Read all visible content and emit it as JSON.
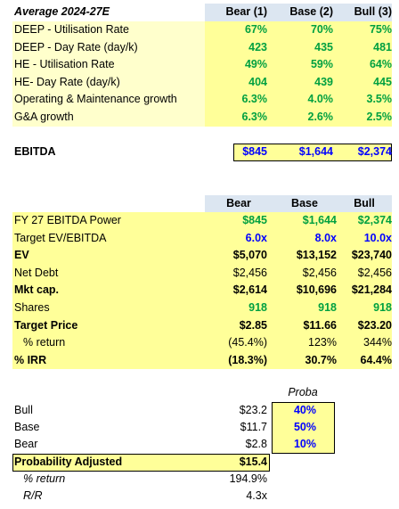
{
  "scenario_table": {
    "title": "Average 2024-27E",
    "columns": [
      "Bear (1)",
      "Base (2)",
      "Bull (3)"
    ],
    "rows": [
      {
        "label": "DEEP - Utilisation Rate",
        "values": [
          "67%",
          "70%",
          "75%"
        ]
      },
      {
        "label": "DEEP - Day Rate (day/k)",
        "values": [
          "423",
          "435",
          "481"
        ]
      },
      {
        "label": "HE - Utilisation Rate",
        "values": [
          "49%",
          "59%",
          "64%"
        ]
      },
      {
        "label": "HE- Day Rate (day/k)",
        "values": [
          "404",
          "439",
          "445"
        ]
      },
      {
        "label": "Operating & Maintenance growth",
        "values": [
          "6.3%",
          "4.0%",
          "3.5%"
        ]
      },
      {
        "label": "G&A growth",
        "values": [
          "6.3%",
          "2.6%",
          "2.5%"
        ]
      }
    ]
  },
  "ebitda": {
    "label": "EBITDA",
    "values": [
      "$845",
      "$1,644",
      "$2,374"
    ]
  },
  "valuation": {
    "columns": [
      "Bear",
      "Base",
      "Bull"
    ],
    "rows": [
      {
        "label": "FY 27 EBITDA Power",
        "values": [
          "$845",
          "$1,644",
          "$2,374"
        ]
      },
      {
        "label": "Target EV/EBITDA",
        "values": [
          "6.0x",
          "8.0x",
          "10.0x"
        ]
      },
      {
        "label": "EV",
        "values": [
          "$5,070",
          "$13,152",
          "$23,740"
        ]
      },
      {
        "label": "Net Debt",
        "values": [
          "$2,456",
          "$2,456",
          "$2,456"
        ]
      },
      {
        "label": "Mkt cap.",
        "values": [
          "$2,614",
          "$10,696",
          "$21,284"
        ]
      },
      {
        "label": "Shares",
        "values": [
          "918",
          "918",
          "918"
        ]
      },
      {
        "label": "Target Price",
        "values": [
          "$2.85",
          "$11.66",
          "$23.20"
        ]
      },
      {
        "label": "% return",
        "values": [
          "(45.4%)",
          "123%",
          "344%"
        ]
      },
      {
        "label": "% IRR",
        "values": [
          "(18.3%)",
          "30.7%",
          "64.4%"
        ]
      }
    ]
  },
  "probability": {
    "header": "Proba",
    "rows": [
      {
        "label": "Bull",
        "price": "$23.2",
        "proba": "40%"
      },
      {
        "label": "Base",
        "price": "$11.7",
        "proba": "50%"
      },
      {
        "label": "Bear",
        "price": "$2.8",
        "proba": "10%"
      }
    ],
    "adjusted": {
      "label": "Probability Adjusted",
      "value": "$15.4"
    },
    "return": {
      "label": "% return",
      "value": "194.9%"
    },
    "rr": {
      "label": "R/R",
      "value": "4.3x"
    }
  }
}
